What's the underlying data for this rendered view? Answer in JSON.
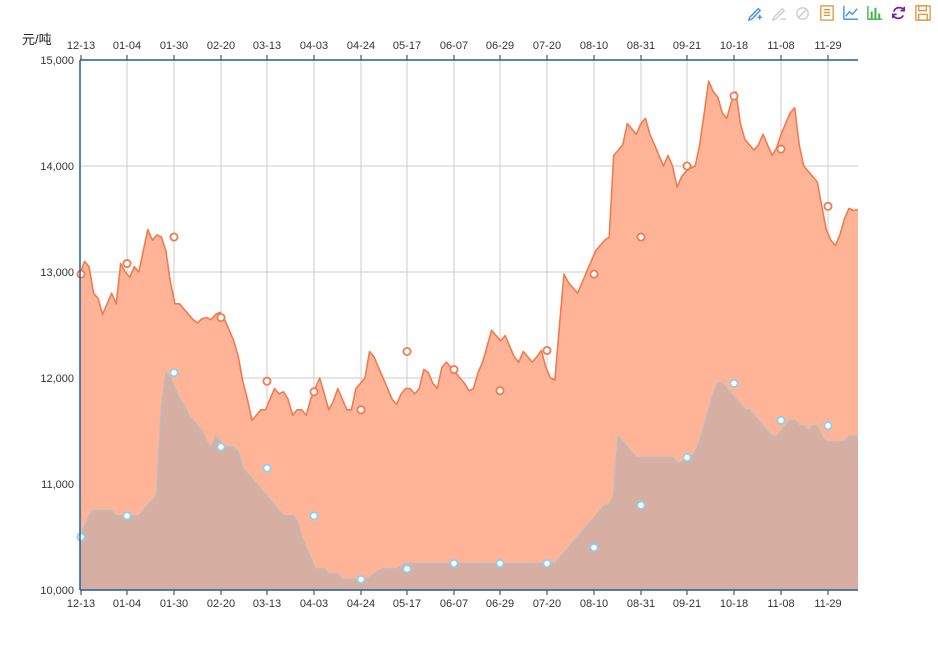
{
  "toolbar": {
    "tools": [
      {
        "icon": "mark-pen-icon",
        "color": "#3a8ee6"
      },
      {
        "icon": "mark-undo-icon",
        "color": "#cccccc"
      },
      {
        "icon": "mark-clear-icon",
        "color": "#cccccc"
      },
      {
        "icon": "data-view-icon",
        "color": "#e2953b"
      },
      {
        "icon": "line-chart-icon",
        "color": "#3a8ee6"
      },
      {
        "icon": "bar-chart-icon",
        "color": "#3cb043"
      },
      {
        "icon": "restore-icon",
        "color": "#7b1fa2"
      },
      {
        "icon": "save-image-icon",
        "color": "#e2953b"
      }
    ]
  },
  "chart_data": {
    "type": "area",
    "ylabel": "元/吨",
    "ylim": [
      10000,
      15000
    ],
    "y_ticks": [
      "10,000",
      "11,000",
      "12,000",
      "13,000",
      "14,000",
      "15,000"
    ],
    "x_ticks": [
      "12-13",
      "01-04",
      "01-30",
      "02-20",
      "03-13",
      "04-03",
      "04-24",
      "05-17",
      "06-07",
      "06-29",
      "07-20",
      "08-10",
      "08-31",
      "09-21",
      "10-18",
      "11-08",
      "11-29"
    ],
    "grid": true,
    "colors": {
      "upper_line": "#f07b4f",
      "upper_fill": "#ffb498",
      "lower_line": "#bbbbbb",
      "lower_fill": "#d5aea2",
      "marker_lower": "#8ecfee",
      "axis": "#1f5f9e"
    },
    "series": [
      {
        "values": [
          12980,
          13100,
          13050,
          12800,
          12750,
          12600,
          12700,
          12800,
          12700,
          13080,
          13000,
          12950,
          13050,
          13000,
          13200,
          13400,
          13300,
          13350,
          13330,
          13200,
          12900,
          12700,
          12700,
          12650,
          12600,
          12550,
          12520,
          12560,
          12570,
          12550,
          12600,
          12620,
          12550,
          12450,
          12350,
          12200,
          11970,
          11800,
          11600,
          11650,
          11700,
          11700,
          11800,
          11900,
          11850,
          11870,
          11800,
          11650,
          11700,
          11700,
          11650,
          11800,
          11900,
          12000,
          11850,
          11700,
          11780,
          11900,
          11800,
          11700,
          11700,
          11900,
          11950,
          12000,
          12250,
          12200,
          12100,
          12000,
          11900,
          11800,
          11750,
          11850,
          11900,
          11900,
          11850,
          11900,
          12080,
          12050,
          11950,
          11900,
          12100,
          12150,
          12100,
          12050,
          12000,
          11950,
          11880,
          11900,
          12050,
          12150,
          12300,
          12450,
          12400,
          12350,
          12400,
          12300,
          12200,
          12150,
          12250,
          12200,
          12150,
          12200,
          12260,
          12100,
          12000,
          11980,
          12500,
          12980,
          12900,
          12850,
          12800,
          12900,
          13000,
          13100,
          13200,
          13250,
          13300,
          13330,
          14100,
          14150,
          14200,
          14400,
          14350,
          14300,
          14400,
          14450,
          14300,
          14200,
          14100,
          14000,
          14100,
          14000,
          13800,
          13900,
          13950,
          13980,
          14000,
          14200,
          14500,
          14800,
          14700,
          14650,
          14500,
          14450,
          14600,
          14700,
          14400,
          14250,
          14200,
          14150,
          14200,
          14300,
          14200,
          14100,
          14170,
          14300,
          14400,
          14500,
          14550,
          14200,
          14000,
          13950,
          13900,
          13850,
          13620,
          13400,
          13300,
          13250,
          13350,
          13500,
          13600,
          13580,
          13590
        ]
      },
      {
        "values": [
          10500,
          10600,
          10700,
          10750,
          10750,
          10750,
          10750,
          10750,
          10700,
          10700,
          10700,
          10700,
          10700,
          10700,
          10750,
          10800,
          10850,
          10900,
          11700,
          12050,
          12000,
          11900,
          11800,
          11750,
          11650,
          11600,
          11550,
          11500,
          11400,
          11350,
          11450,
          11400,
          11350,
          11350,
          11350,
          11300,
          11150,
          11100,
          11050,
          11000,
          10950,
          10900,
          10850,
          10800,
          10750,
          10700,
          10700,
          10700,
          10650,
          10500,
          10400,
          10300,
          10200,
          10200,
          10200,
          10150,
          10150,
          10150,
          10100,
          10100,
          10100,
          10100,
          10100,
          10100,
          10120,
          10150,
          10180,
          10200,
          10200,
          10200,
          10200,
          10220,
          10250,
          10250,
          10250,
          10250,
          10250,
          10250,
          10250,
          10250,
          10250,
          10250,
          10250,
          10250,
          10250,
          10250,
          10250,
          10250,
          10250,
          10250,
          10250,
          10250,
          10250,
          10250,
          10250,
          10250,
          10250,
          10250,
          10250,
          10250,
          10250,
          10250,
          10250,
          10250,
          10250,
          10250,
          10300,
          10350,
          10400,
          10450,
          10500,
          10550,
          10600,
          10650,
          10700,
          10750,
          10800,
          10800,
          10900,
          11450,
          11400,
          11350,
          11300,
          11250,
          11250,
          11250,
          11250,
          11250,
          11250,
          11250,
          11250,
          11250,
          11200,
          11200,
          11250,
          11250,
          11300,
          11400,
          11550,
          11700,
          11850,
          11950,
          11950,
          11900,
          11850,
          11800,
          11750,
          11700,
          11700,
          11650,
          11600,
          11550,
          11500,
          11450,
          11450,
          11500,
          11550,
          11600,
          11600,
          11550,
          11550,
          11500,
          11550,
          11550,
          11450,
          11400,
          11400,
          11400,
          11400,
          11400,
          11450,
          11450,
          11450
        ]
      }
    ],
    "markers_upper": [
      12980,
      13080,
      13330,
      12570,
      11970,
      11870,
      11700,
      12250,
      12080,
      11880,
      12260,
      12980,
      13330,
      14000,
      14660,
      14160,
      13620
    ],
    "markers_lower": [
      10500,
      10700,
      12050,
      11350,
      11150,
      10700,
      10100,
      10200,
      10250,
      10250,
      10250,
      10400,
      10800,
      11250,
      11950,
      11600,
      11550
    ]
  }
}
